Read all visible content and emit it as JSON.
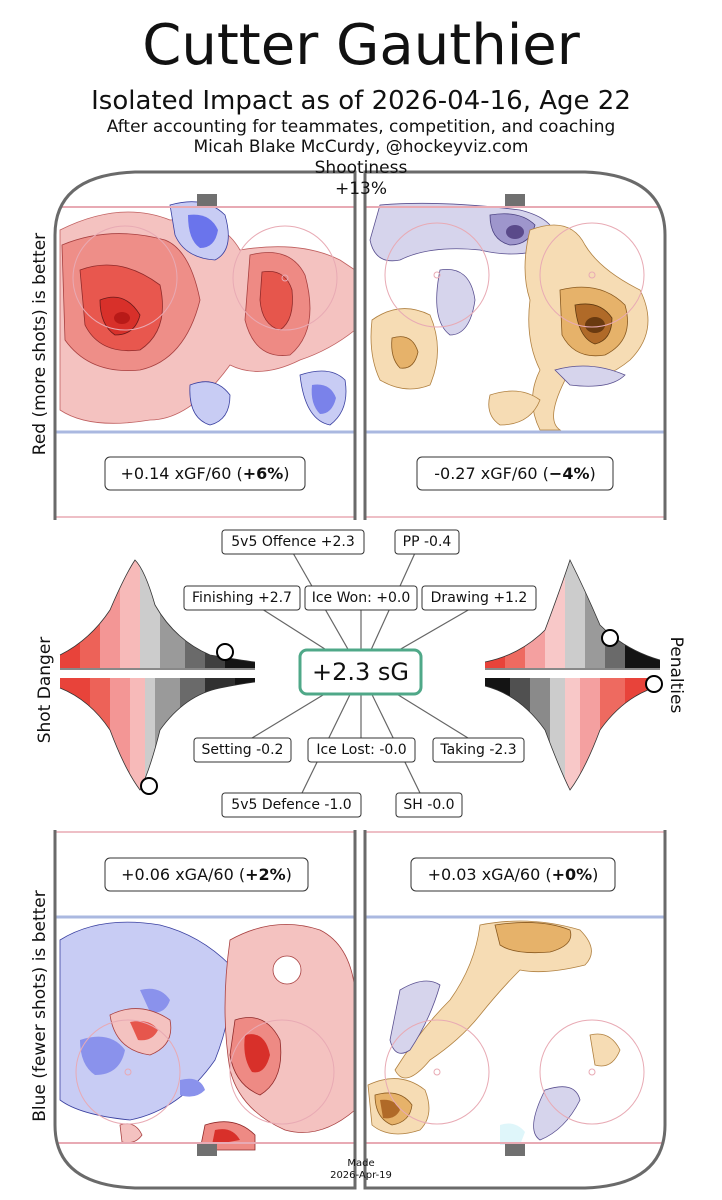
{
  "header": {
    "title": "Cutter Gauthier",
    "subtitle": "Isolated Impact as of 2026-04-16, Age 22",
    "line1": "After accounting for teammates, competition, and coaching",
    "line2": "Micah Blake McCurdy, @hockeyviz.com"
  },
  "shootiness": {
    "label": "Shootiness",
    "value": "+13%"
  },
  "side_labels": {
    "top_left": "Red (more shots) is better",
    "bottom_left": "Blue (fewer shots) is better",
    "mid_left": "Shot Danger",
    "mid_right": "Penalties"
  },
  "colors": {
    "red": "#e8433a",
    "blue": "#5966e8",
    "orange": "#e6b26a",
    "purple": "#7a72b8",
    "rink_line_red": "#e8aab4",
    "rink_line_blue": "#aab8e0",
    "box_green": "#4fa888"
  },
  "chart_data": {
    "type": "table",
    "offence_boxes": {
      "left": {
        "value": "+0.14 xGF/60",
        "pct": "+6%"
      },
      "right": {
        "value": "-0.27 xGF/60",
        "pct": "−4%"
      }
    },
    "defence_boxes": {
      "left": {
        "value": "+0.06 xGA/60",
        "pct": "+2%"
      },
      "right": {
        "value": "+0.03 xGA/60",
        "pct": "+0%"
      }
    },
    "center": {
      "label": "+2.3 sG"
    },
    "components": [
      {
        "label": "5v5 Offence +2.3"
      },
      {
        "label": "PP -0.4"
      },
      {
        "label": "Finishing +2.7"
      },
      {
        "label": "Ice Won: +0.0"
      },
      {
        "label": "Drawing +1.2"
      },
      {
        "label": "Setting -0.2"
      },
      {
        "label": "Ice Lost: -0.0"
      },
      {
        "label": "Taking -2.3"
      },
      {
        "label": "5v5 Defence -1.0"
      },
      {
        "label": "SH -0.0"
      }
    ]
  },
  "footer": {
    "made_label": "Made",
    "made_date": "2026-Apr-19"
  }
}
